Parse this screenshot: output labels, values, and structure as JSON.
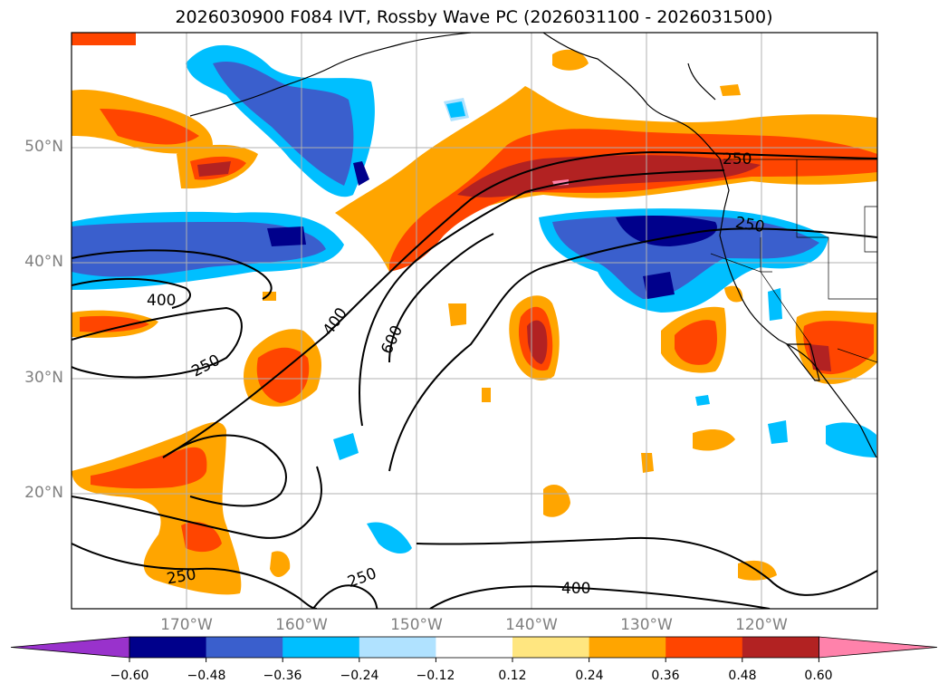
{
  "title": "2026030900 F084 IVT, Rossby Wave PC (2026031100 - 2026031500)",
  "lat_labels": [
    "50°N",
    "40°N",
    "30°N",
    "20°N"
  ],
  "lon_labels": [
    "170°W",
    "160°W",
    "150°W",
    "140°W",
    "130°W",
    "120°W"
  ],
  "contour_labels": [
    "400",
    "250",
    "400",
    "600",
    "250",
    "250",
    "250",
    "250",
    "400"
  ],
  "colorbar": {
    "ticks": [
      "−0.60",
      "−0.48",
      "−0.36",
      "−0.24",
      "−0.12",
      "0.12",
      "0.24",
      "0.36",
      "0.48",
      "0.60"
    ],
    "colors": [
      "#9932cc",
      "#00008b",
      "#3a5fcd",
      "#00bfff",
      "#b0e2ff",
      "#ffffff",
      "#ffe680",
      "#ffa500",
      "#ff4500",
      "#b22222",
      "#ff82ab"
    ]
  },
  "map": {
    "projection": "lat-lon",
    "lon_range": [
      "180°W",
      "110°W"
    ],
    "lat_range": [
      "10°N",
      "60°N"
    ],
    "contour_levels": [
      250,
      400,
      600
    ]
  }
}
